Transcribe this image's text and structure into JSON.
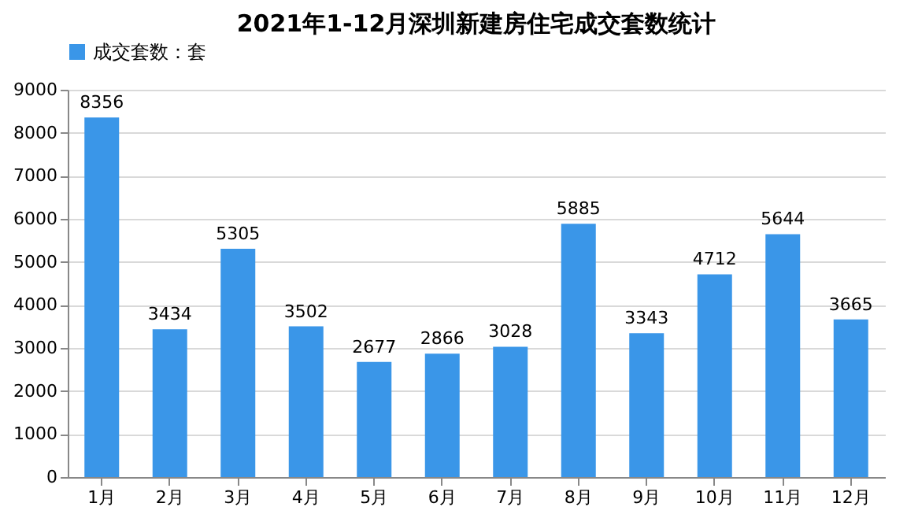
{
  "chart_data": {
    "type": "bar",
    "title": "2021年1-12月深圳新建房住宅成交套数统计",
    "categories": [
      "1月",
      "2月",
      "3月",
      "4月",
      "5月",
      "6月",
      "7月",
      "8月",
      "9月",
      "10月",
      "11月",
      "12月"
    ],
    "series": [
      {
        "name": "成交套数：套",
        "color": "#3a96e8",
        "values": [
          8356,
          3434,
          5305,
          3502,
          2677,
          2866,
          3028,
          5885,
          3343,
          4712,
          5644,
          3665
        ]
      }
    ],
    "ylim": [
      0,
      9000
    ],
    "yticks": [
      0,
      1000,
      2000,
      3000,
      4000,
      5000,
      6000,
      7000,
      8000,
      9000
    ],
    "grid": "y",
    "legend": "top",
    "data_labels": true
  }
}
